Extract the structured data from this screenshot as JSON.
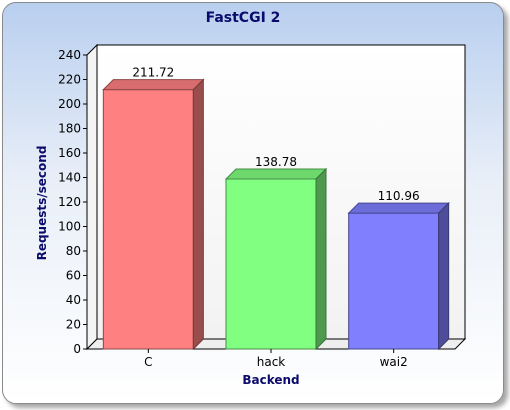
{
  "chart_data": {
    "type": "bar",
    "title": "FastCGI 2",
    "xlabel": "Backend",
    "ylabel": "Requests/second",
    "categories": [
      "C",
      "hack",
      "wai2"
    ],
    "values": [
      211.72,
      138.78,
      110.96
    ],
    "value_labels": [
      "211.72",
      "138.78",
      "110.96"
    ],
    "ylim": [
      0,
      240
    ],
    "yticks": [
      0,
      20,
      40,
      60,
      80,
      100,
      120,
      140,
      160,
      180,
      200,
      220,
      240
    ],
    "grid": false,
    "three_d": true,
    "colors": [
      "#ff8080",
      "#80ff80",
      "#8080ff"
    ]
  }
}
